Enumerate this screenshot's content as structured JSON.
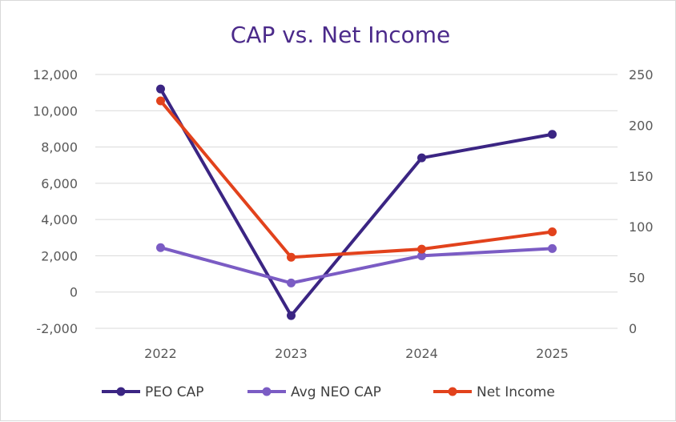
{
  "chart_data": {
    "type": "line",
    "title": "CAP vs. Net Income",
    "categories": [
      "2022",
      "2023",
      "2024",
      "2025"
    ],
    "y_left": {
      "min": -2000,
      "max": 12000,
      "step": 2000,
      "ticks": [
        "-2,000",
        "0",
        "2,000",
        "4,000",
        "6,000",
        "8,000",
        "10,000",
        "12,000"
      ]
    },
    "y_right": {
      "min": 0,
      "max": 250,
      "step": 50,
      "ticks": [
        "0",
        "50",
        "100",
        "150",
        "200",
        "250"
      ]
    },
    "series": [
      {
        "name": "PEO CAP",
        "axis": "left",
        "color": "#3b2583",
        "values": [
          11200,
          -1300,
          7400,
          8700
        ]
      },
      {
        "name": "Avg NEO CAP",
        "axis": "left",
        "color": "#7b5cc4",
        "values": [
          2450,
          500,
          2000,
          2400
        ]
      },
      {
        "name": "Net Income",
        "axis": "right",
        "color": "#e2421c",
        "values": [
          224,
          70,
          78,
          95
        ]
      }
    ],
    "grid": true,
    "legend": "bottom"
  }
}
